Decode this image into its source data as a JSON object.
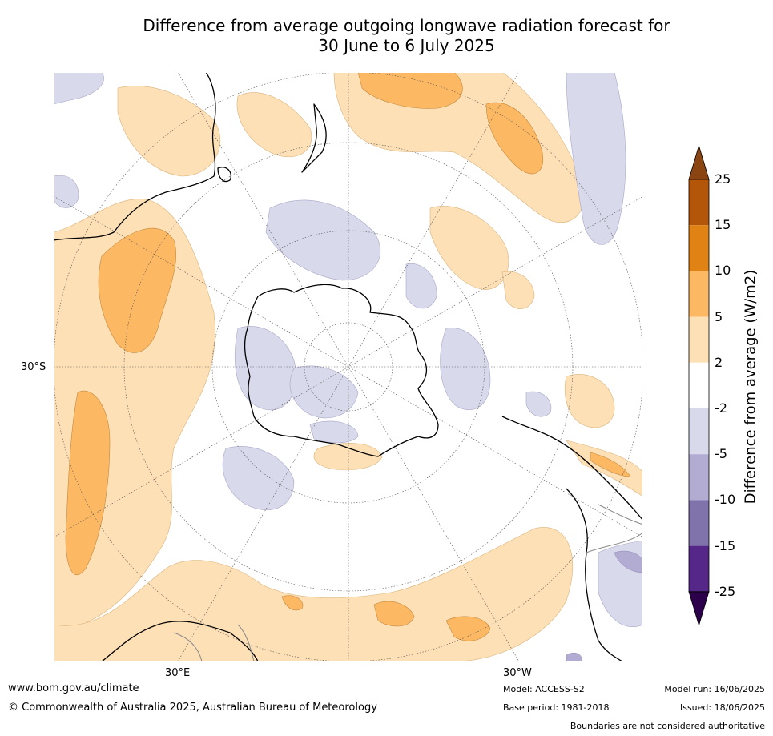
{
  "title_line1": "Difference from average outgoing longwave radiation forecast for",
  "title_line2": "30 June to 6 July 2025",
  "map_labels": {
    "lat": "30°S",
    "lon_e": "30°E",
    "lon_w": "30°W"
  },
  "colorbar": {
    "title": "Difference from average (W/m2)",
    "levels": [
      "25",
      "15",
      "10",
      "5",
      "2",
      "-2",
      "-5",
      "-10",
      "-15",
      "-25"
    ],
    "colors": [
      "#8b4513",
      "#b3560a",
      "#e08214",
      "#fdb863",
      "#fee0b6",
      "#ffffff",
      "#d8daeb",
      "#b2abd2",
      "#8073ac",
      "#542788",
      "#2d004b"
    ]
  },
  "footer": {
    "url": "www.bom.gov.au/climate",
    "copyright": "© Commonwealth of Australia 2025, Australian Bureau of Meteorology",
    "model": "Model: ACCESS-S2",
    "base_period": "Base period: 1981-2018",
    "model_run": "Model run: 16/06/2025",
    "issued": "Issued: 18/06/2025",
    "disclaimer": "Boundaries are not considered authoritative"
  }
}
